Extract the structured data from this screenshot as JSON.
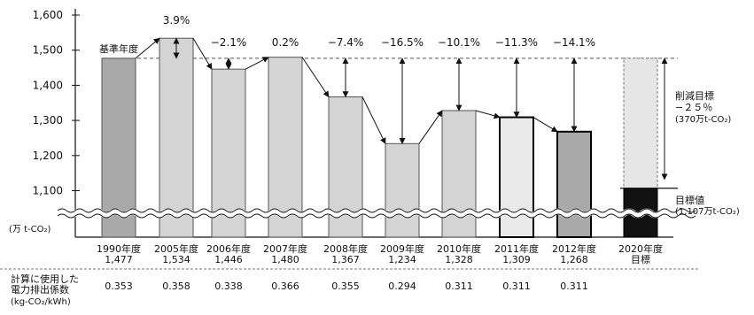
{
  "chart_data": {
    "type": "bar",
    "unit_label": "(万 t-CO₂)",
    "yticks": [
      "1,600",
      "1,500",
      "1,400",
      "1,300",
      "1,200",
      "1,100"
    ],
    "ylim": [
      1050,
      1610
    ],
    "grid": false,
    "baseline_label": "基準年度",
    "categories": [
      "1990年度",
      "2005年度",
      "2006年度",
      "2007年度",
      "2008年度",
      "2009年度",
      "2010年度",
      "2011年度",
      "2012年度",
      "2020年度"
    ],
    "value_labels": [
      "1,477",
      "1,534",
      "1,446",
      "1,480",
      "1,367",
      "1,234",
      "1,328",
      "1,309",
      "1,268",
      "目標"
    ],
    "values": [
      1477,
      1534,
      1446,
      1480,
      1367,
      1234,
      1328,
      1309,
      1268,
      1107
    ],
    "changes": [
      "",
      "3.9%",
      "−2.1%",
      "0.2%",
      "−7.4%",
      "−16.5%",
      "−10.1%",
      "−11.3%",
      "−14.1%",
      ""
    ],
    "bar_colors": [
      "#a9a9a9",
      "#d4d4d4",
      "#d4d4d4",
      "#d4d4d4",
      "#d4d4d4",
      "#d4d4d4",
      "#d4d4d4",
      "#d4d4d4",
      "#a9a9a9",
      "#111111"
    ],
    "target": {
      "reduction_title": "削減目標",
      "reduction_pct": "−２５％",
      "reduction_amount": "(370万t-CO₂)",
      "target_title": "目標値",
      "target_amount": "(1,107万t-CO₂)"
    },
    "factor_label": [
      "計算に使用した",
      "電力排出係数",
      "(kg-CO₂/kWh)"
    ],
    "factors": [
      "0.353",
      "0.358",
      "0.338",
      "0.366",
      "0.355",
      "0.294",
      "0.311",
      "0.311",
      "0.311",
      ""
    ]
  }
}
